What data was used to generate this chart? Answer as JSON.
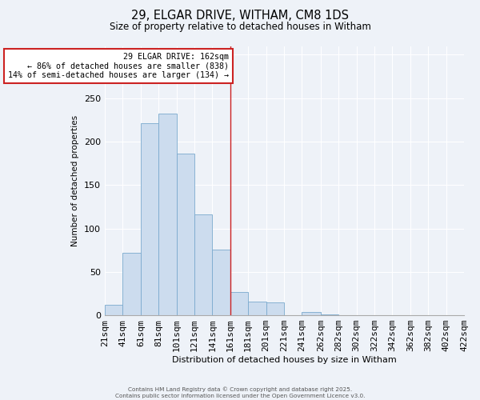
{
  "title": "29, ELGAR DRIVE, WITHAM, CM8 1DS",
  "subtitle": "Size of property relative to detached houses in Witham",
  "xlabel": "Distribution of detached houses by size in Witham",
  "ylabel": "Number of detached properties",
  "bar_color": "#ccdcee",
  "bar_edge_color": "#7aaace",
  "background_color": "#eef2f8",
  "grid_color": "#ffffff",
  "bin_edges": [
    21,
    41,
    61,
    81,
    101,
    121,
    141,
    161,
    181,
    201,
    221,
    241,
    262,
    282,
    302,
    322,
    342,
    362,
    382,
    402,
    422
  ],
  "counts": [
    12,
    72,
    221,
    232,
    186,
    116,
    76,
    27,
    16,
    15,
    0,
    4,
    1,
    0,
    0,
    0,
    0,
    0,
    0,
    0
  ],
  "tick_labels": [
    "21sqm",
    "41sqm",
    "61sqm",
    "81sqm",
    "101sqm",
    "121sqm",
    "141sqm",
    "161sqm",
    "181sqm",
    "201sqm",
    "221sqm",
    "241sqm",
    "262sqm",
    "282sqm",
    "302sqm",
    "322sqm",
    "342sqm",
    "362sqm",
    "382sqm",
    "402sqm",
    "422sqm"
  ],
  "property_line_x": 161,
  "annotation_line1": "29 ELGAR DRIVE: 162sqm",
  "annotation_line2": "← 86% of detached houses are smaller (838)",
  "annotation_line3": "14% of semi-detached houses are larger (134) →",
  "annotation_box_edge_color": "#cc2222",
  "ylim": [
    0,
    310
  ],
  "xlim_left": 21,
  "xlim_right": 422,
  "footer_line1": "Contains HM Land Registry data © Crown copyright and database right 2025.",
  "footer_line2": "Contains public sector information licensed under the Open Government Licence v3.0."
}
